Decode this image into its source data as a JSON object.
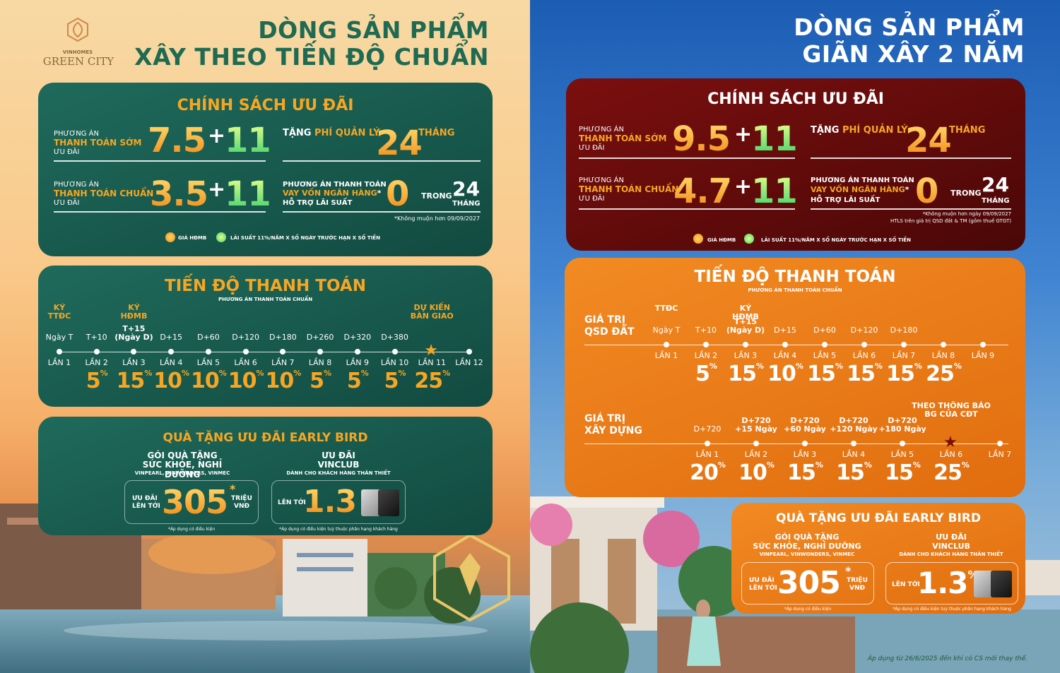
{
  "logo": {
    "brand_top": "VINHOMES",
    "brand_name": "GREEN CITY"
  },
  "left": {
    "title_line1": "DÒNG SẢN PHẨM",
    "title_line2": "XÂY THEO TIẾN ĐỘ CHUẨN",
    "policy": {
      "title": "CHÍNH SÁCH ƯU ĐÃI",
      "early_label1": "PHƯƠNG ÁN",
      "early_label2": "THANH TOÁN SỚM",
      "early_label3": "ƯU ĐÃI",
      "early_value": "7.5",
      "early_bonus": "11",
      "fee_label1": "TẶNG",
      "fee_label2": "PHÍ QUẢN LÝ",
      "fee_value": "24",
      "fee_unit": "THÁNG",
      "std_label1": "PHƯƠNG ÁN",
      "std_label2": "THANH TOÁN CHUẨN",
      "std_label3": "ƯU ĐÃI",
      "std_value": "3.5",
      "std_bonus": "11",
      "loan_label1": "PHƯƠNG ÁN THANH TOÁN",
      "loan_label2": "VAY VỐN NGÂN HÀNG",
      "loan_label3": "HỖ TRỢ LÃI SUẤT",
      "loan_value": "0",
      "loan_in": "TRONG",
      "loan_months": "24",
      "loan_unit": "THÁNG",
      "footnote": "*Không muộn hơn 09/09/2027",
      "legend1": "GIÁ HĐMB",
      "legend2": "LÃI SUẤT 11%/NĂM X SỐ NGÀY TRƯỚC HẠN X SỐ TIỀN"
    },
    "progress": {
      "title": "TIẾN ĐỘ THANH TOÁN",
      "subtitle": "PHƯƠNG ÁN THANH TOÁN CHUẨN",
      "milestones": [
        {
          "top": "KÝ\nTTĐC",
          "time": "Ngày T",
          "lan": "LẦN 1",
          "pct": ""
        },
        {
          "top": "",
          "time": "T+10",
          "lan": "LẦN 2",
          "pct": "5"
        },
        {
          "top": "KÝ\nHĐMB",
          "time": "T+15\n(Ngày D)",
          "lan": "LẦN 3",
          "pct": "15"
        },
        {
          "top": "",
          "time": "D+15",
          "lan": "LẦN 4",
          "pct": "10"
        },
        {
          "top": "",
          "time": "D+60",
          "lan": "LẦN 5",
          "pct": "10"
        },
        {
          "top": "",
          "time": "D+120",
          "lan": "LẦN 6",
          "pct": "10"
        },
        {
          "top": "",
          "time": "D+180",
          "lan": "LẦN 7",
          "pct": "10"
        },
        {
          "top": "",
          "time": "D+260",
          "lan": "LẦN 8",
          "pct": "5"
        },
        {
          "top": "",
          "time": "D+320",
          "lan": "LẦN 9",
          "pct": "5"
        },
        {
          "top": "",
          "time": "D+380",
          "lan": "LẦN 10",
          "pct": "5"
        },
        {
          "top": "DỰ KIẾN\nBÀN GIAO",
          "time": "",
          "lan": "LẦN 11",
          "pct": "25"
        },
        {
          "top": "",
          "time": "",
          "lan": "LẦN 12",
          "pct": ""
        }
      ]
    },
    "gift": {
      "title": "QUÀ TẶNG ƯU ĐÃI EARLY BIRD",
      "pkg_line1": "GÓI QUÀ TẶNG",
      "pkg_line2": "SỨC KHỎE, NGHỈ DƯỠNG",
      "pkg_line3": "VINPEARL, VINWONDERS, VINMEC",
      "pkg_pre1": "ƯU ĐÃI",
      "pkg_pre2": "LÊN TỚI",
      "pkg_value": "305",
      "pkg_unit1": "TRIỆU",
      "pkg_unit2": "VNĐ",
      "pkg_note": "*Áp dụng có điều kiện",
      "club_line1": "ƯU ĐÃI",
      "club_line2": "VINCLUB",
      "club_line3": "DÀNH CHO KHÁCH HÀNG THÂN THIẾT",
      "club_pre": "LÊN TỚI",
      "club_value": "1.3",
      "club_note": "*Áp dụng có điều kiện tuỳ thuộc phân hạng khách hàng"
    }
  },
  "right": {
    "title_line1": "DÒNG SẢN PHẨM",
    "title_line2": "GIÃN XÂY 2 NĂM",
    "policy": {
      "title": "CHÍNH SÁCH ƯU ĐÃI",
      "early_label1": "PHƯƠNG ÁN",
      "early_label2": "THANH TOÁN SỚM",
      "early_label3": "ƯU ĐÃI",
      "early_value": "9.5",
      "early_bonus": "11",
      "fee_label1": "TẶNG",
      "fee_label2": "PHÍ QUẢN LÝ",
      "fee_value": "24",
      "fee_unit": "THÁNG",
      "std_label1": "PHƯƠNG ÁN",
      "std_label2": "THANH TOÁN CHUẨN",
      "std_label3": "ƯU ĐÃI",
      "std_value": "4.7",
      "std_bonus": "11",
      "loan_label1": "PHƯƠNG ÁN THANH TOÁN",
      "loan_label2": "VAY VỐN NGÂN HÀNG",
      "loan_label3": "HỖ TRỢ LÃI SUẤT",
      "loan_value": "0",
      "loan_in": "TRONG",
      "loan_months": "24",
      "loan_unit": "THÁNG",
      "footnote1": "*Không muộn hơn ngày 09/09/2027",
      "footnote2": "HTLS trên giá trị QSD đất & TM (gồm thuế GTGT)",
      "legend1": "GIÁ HĐMB",
      "legend2": "LÃI SUẤT 11%/NĂM X SỐ NGÀY TRƯỚC HẠN X SỐ TIỀN"
    },
    "progress": {
      "title": "TIẾN ĐỘ THANH TOÁN",
      "subtitle": "PHƯƠNG ÁN THANH TOÁN CHUẨN",
      "land_label1": "GIÁ TRỊ",
      "land_label2": "QSD ĐẤT",
      "land": [
        {
          "top": "TTĐC",
          "time": "Ngày T",
          "lan": "LẦN 1",
          "pct": ""
        },
        {
          "top": "",
          "time": "T+10",
          "lan": "LẦN 2",
          "pct": "5"
        },
        {
          "top": "KÝ\nHĐMB",
          "time": "T+15\n(Ngày D)",
          "lan": "LẦN 3",
          "pct": "15"
        },
        {
          "top": "",
          "time": "D+15",
          "lan": "LẦN 4",
          "pct": "10"
        },
        {
          "top": "",
          "time": "D+60",
          "lan": "LẦN 5",
          "pct": "15"
        },
        {
          "top": "",
          "time": "D+120",
          "lan": "LẦN 6",
          "pct": "15"
        },
        {
          "top": "",
          "time": "D+180",
          "lan": "LẦN 7",
          "pct": "15"
        },
        {
          "top": "",
          "time": "",
          "lan": "LẦN 8",
          "pct": "25"
        },
        {
          "top": "",
          "time": "",
          "lan": "LẦN 9",
          "pct": ""
        }
      ],
      "build_label1": "GIÁ TRỊ",
      "build_label2": "XÂY DỰNG",
      "build": [
        {
          "top": "",
          "time": "D+720",
          "lan": "LẦN 1",
          "pct": "20"
        },
        {
          "top": "",
          "time": "D+720\n+15 Ngày",
          "lan": "LẦN 2",
          "pct": "10"
        },
        {
          "top": "",
          "time": "D+720\n+60 Ngày",
          "lan": "LẦN 3",
          "pct": "15"
        },
        {
          "top": "",
          "time": "D+720\n+120 Ngày",
          "lan": "LẦN 4",
          "pct": "15"
        },
        {
          "top": "",
          "time": "D+720\n+180 Ngày",
          "lan": "LẦN 5",
          "pct": "15"
        },
        {
          "top": "THEO THÔNG BÁO\nBG CỦA CĐT",
          "time": "",
          "lan": "LẦN 6",
          "pct": "25"
        },
        {
          "top": "",
          "time": "",
          "lan": "LẦN 7",
          "pct": ""
        }
      ]
    },
    "gift": {
      "title": "QUÀ TẶNG ƯU ĐÃI EARLY BIRD",
      "pkg_line1": "GÓI QUÀ TẶNG",
      "pkg_line2": "SỨC KHỎE, NGHỈ DƯỠNG",
      "pkg_line3": "VINPEARL, VINWONDERS, VINMEC",
      "pkg_pre1": "ƯU ĐÃI",
      "pkg_pre2": "LÊN TỚI",
      "pkg_value": "305",
      "pkg_unit1": "TRIỆU",
      "pkg_unit2": "VNĐ",
      "pkg_note": "*Áp dụng có điều kiện",
      "club_line1": "ƯU ĐÃI",
      "club_line2": "VINCLUB",
      "club_line3": "DÀNH CHO KHÁCH HÀNG THÂN THIẾT",
      "club_pre": "LÊN TỚI",
      "club_value": "1.3",
      "club_note": "*Áp dụng có điều kiện tuỳ thuộc phân hạng khách hàng"
    },
    "footer": "Áp dụng từ 26/6/2025 đến khi có CS mới thay thế."
  },
  "symbols": {
    "percent": "%",
    "plus": "+",
    "asterisk": "*"
  },
  "colors": {
    "green_panel": "#1a5c50",
    "red_panel": "#6a0b0b",
    "orange_panel": "#ee7c18",
    "gold": "#f6a623"
  }
}
